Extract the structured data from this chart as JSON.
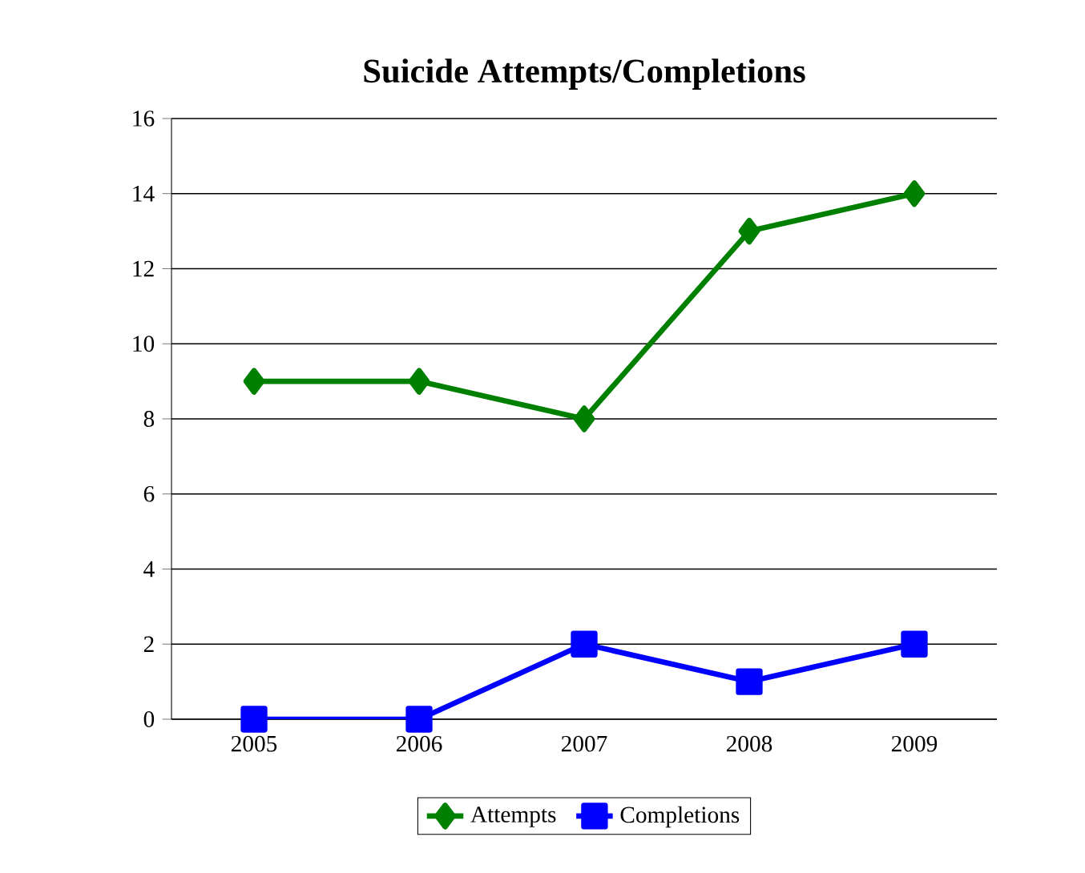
{
  "chart_data": {
    "type": "line",
    "title": "Suicide Attempts/Completions",
    "categories": [
      "2005",
      "2006",
      "2007",
      "2008",
      "2009"
    ],
    "series": [
      {
        "name": "Attempts",
        "color": "#008000",
        "values": [
          9,
          9,
          8,
          13,
          14
        ],
        "marker": "diamond"
      },
      {
        "name": "Completions",
        "color": "#0000ff",
        "values": [
          0,
          0,
          2,
          1,
          2
        ],
        "marker": "square"
      }
    ],
    "ylim": [
      0,
      16
    ],
    "yticks": [
      0,
      2,
      4,
      6,
      8,
      10,
      12,
      14,
      16
    ],
    "grid": "y",
    "legend": "bottom"
  }
}
